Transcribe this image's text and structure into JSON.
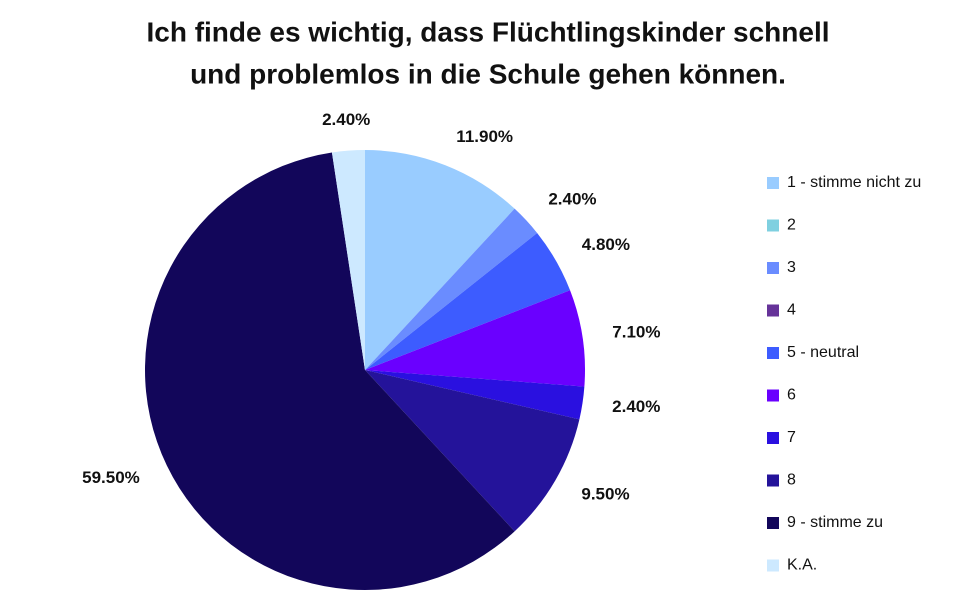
{
  "chart_data": {
    "type": "pie",
    "title": [
      "Ich finde es wichtig, dass Flüchtlingskinder schnell",
      "und problemlos in die Schule gehen können."
    ],
    "categories": [
      "1 - stimme nicht zu",
      "2",
      "3",
      "4",
      "5 - neutral",
      "6",
      "7",
      "8",
      "9 - stimme zu",
      "K.A."
    ],
    "values": [
      11.9,
      0,
      2.4,
      0,
      4.8,
      7.1,
      2.4,
      9.5,
      59.5,
      2.4
    ],
    "value_labels": [
      "11.90%",
      null,
      "2.40%",
      null,
      "4.80%",
      "7.10%",
      "2.40%",
      "9.50%",
      "59.50%",
      "2.40%"
    ],
    "colors": [
      "#99ccff",
      "#7fd0e0",
      "#6a8cff",
      "#663399",
      "#3d5cff",
      "#6a00ff",
      "#2a10e0",
      "#24139a",
      "#12065a",
      "#cde9ff"
    ],
    "legend": "right"
  }
}
